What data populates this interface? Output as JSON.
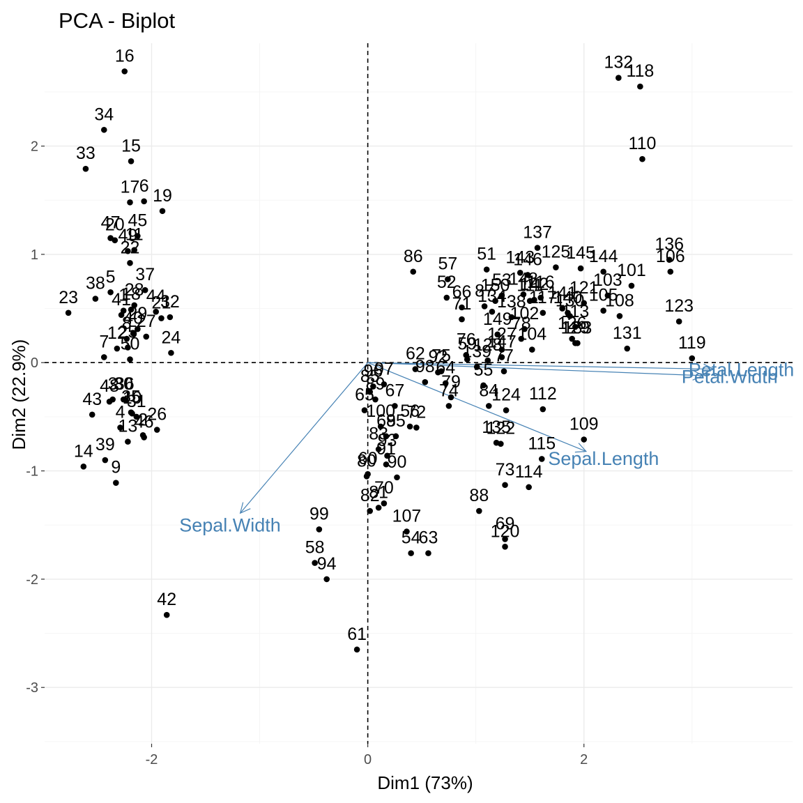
{
  "chart_data": {
    "type": "scatter",
    "title": "PCA - Biplot",
    "xlabel": "Dim1 (73%)",
    "ylabel": "Dim2 (22.9%)",
    "xlim": [
      -2.99,
      3.93
    ],
    "ylim": [
      -3.52,
      2.95
    ],
    "x_ticks": [
      -2,
      0,
      2
    ],
    "y_ticks": [
      -3,
      -2,
      -1,
      0,
      1,
      2
    ],
    "grid": true,
    "reference_lines": {
      "x": 0,
      "y": 0
    },
    "colors": {
      "points": "#000000",
      "arrows": "#4682b4"
    },
    "points": [
      {
        "label": "1",
        "x": -2.26,
        "y": 0.48
      },
      {
        "label": "2",
        "x": -2.08,
        "y": -0.67
      },
      {
        "label": "3",
        "x": -2.36,
        "y": -0.34
      },
      {
        "label": "4",
        "x": -2.29,
        "y": -0.6
      },
      {
        "label": "5",
        "x": -2.38,
        "y": 0.65
      },
      {
        "label": "6",
        "x": -2.07,
        "y": 1.49
      },
      {
        "label": "7",
        "x": -2.44,
        "y": 0.05
      },
      {
        "label": "8",
        "x": -2.23,
        "y": 0.22
      },
      {
        "label": "9",
        "x": -2.33,
        "y": -1.11
      },
      {
        "label": "10",
        "x": -2.18,
        "y": -0.47
      },
      {
        "label": "11",
        "x": -2.16,
        "y": 1.04
      },
      {
        "label": "12",
        "x": -2.32,
        "y": 0.13
      },
      {
        "label": "13",
        "x": -2.22,
        "y": -0.73
      },
      {
        "label": "14",
        "x": -2.63,
        "y": -0.96
      },
      {
        "label": "15",
        "x": -2.19,
        "y": 1.86
      },
      {
        "label": "16",
        "x": -2.25,
        "y": 2.69
      },
      {
        "label": "17",
        "x": -2.2,
        "y": 1.48
      },
      {
        "label": "18",
        "x": -2.19,
        "y": 0.49
      },
      {
        "label": "19",
        "x": -1.9,
        "y": 1.4
      },
      {
        "label": "20",
        "x": -2.34,
        "y": 1.13
      },
      {
        "label": "21",
        "x": -1.91,
        "y": 0.41
      },
      {
        "label": "22",
        "x": -2.2,
        "y": 0.92
      },
      {
        "label": "23",
        "x": -2.77,
        "y": 0.46
      },
      {
        "label": "24",
        "x": -1.82,
        "y": 0.09
      },
      {
        "label": "25",
        "x": -2.22,
        "y": 0.14
      },
      {
        "label": "26",
        "x": -1.95,
        "y": -0.62
      },
      {
        "label": "27",
        "x": -2.05,
        "y": 0.24
      },
      {
        "label": "28",
        "x": -2.16,
        "y": 0.53
      },
      {
        "label": "29",
        "x": -2.13,
        "y": 0.31
      },
      {
        "label": "30",
        "x": -2.26,
        "y": -0.34
      },
      {
        "label": "31",
        "x": -2.14,
        "y": -0.5
      },
      {
        "label": "32",
        "x": -1.83,
        "y": 0.42
      },
      {
        "label": "33",
        "x": -2.61,
        "y": 1.79
      },
      {
        "label": "34",
        "x": -2.44,
        "y": 2.15
      },
      {
        "label": "35",
        "x": -2.19,
        "y": -0.46
      },
      {
        "label": "36",
        "x": -2.25,
        "y": -0.34
      },
      {
        "label": "37",
        "x": -2.06,
        "y": 0.67
      },
      {
        "label": "38",
        "x": -2.52,
        "y": 0.59
      },
      {
        "label": "39",
        "x": -2.43,
        "y": -0.9
      },
      {
        "label": "40",
        "x": -2.17,
        "y": 0.27
      },
      {
        "label": "41",
        "x": -2.28,
        "y": 0.44
      },
      {
        "label": "42",
        "x": -1.86,
        "y": -2.33
      },
      {
        "label": "43",
        "x": -2.55,
        "y": -0.48
      },
      {
        "label": "44",
        "x": -1.96,
        "y": 0.47
      },
      {
        "label": "45",
        "x": -2.13,
        "y": 1.17
      },
      {
        "label": "46",
        "x": -2.07,
        "y": -0.69
      },
      {
        "label": "47",
        "x": -2.38,
        "y": 1.15
      },
      {
        "label": "48",
        "x": -2.39,
        "y": -0.36
      },
      {
        "label": "49",
        "x": -2.22,
        "y": 1.03
      },
      {
        "label": "50",
        "x": -2.2,
        "y": 0.03
      },
      {
        "label": "51",
        "x": 1.1,
        "y": 0.86
      },
      {
        "label": "52",
        "x": 0.73,
        "y": 0.6
      },
      {
        "label": "53",
        "x": 1.24,
        "y": 0.62
      },
      {
        "label": "54",
        "x": 0.4,
        "y": -1.76
      },
      {
        "label": "55",
        "x": 1.07,
        "y": -0.21
      },
      {
        "label": "56",
        "x": 0.39,
        "y": -0.59
      },
      {
        "label": "57",
        "x": 0.74,
        "y": 0.77
      },
      {
        "label": "58",
        "x": -0.49,
        "y": -1.85
      },
      {
        "label": "59",
        "x": 0.92,
        "y": 0.03
      },
      {
        "label": "60",
        "x": 0.0,
        "y": -1.03
      },
      {
        "label": "61",
        "x": -0.1,
        "y": -2.65
      },
      {
        "label": "62",
        "x": 0.44,
        "y": -0.06
      },
      {
        "label": "63",
        "x": 0.56,
        "y": -1.76
      },
      {
        "label": "64",
        "x": 0.72,
        "y": -0.19
      },
      {
        "label": "65",
        "x": -0.03,
        "y": -0.44
      },
      {
        "label": "66",
        "x": 0.87,
        "y": 0.51
      },
      {
        "label": "67",
        "x": 0.25,
        "y": -0.4
      },
      {
        "label": "68",
        "x": 0.17,
        "y": -0.68
      },
      {
        "label": "69",
        "x": 1.27,
        "y": -1.63
      },
      {
        "label": "70",
        "x": 0.15,
        "y": -1.3
      },
      {
        "label": "71",
        "x": 0.87,
        "y": 0.4
      },
      {
        "label": "72",
        "x": 0.45,
        "y": -0.6
      },
      {
        "label": "73",
        "x": 1.27,
        "y": -1.13
      },
      {
        "label": "74",
        "x": 0.75,
        "y": -0.4
      },
      {
        "label": "75",
        "x": 0.68,
        "y": -0.08
      },
      {
        "label": "76",
        "x": 0.91,
        "y": 0.07
      },
      {
        "label": "77",
        "x": 1.26,
        "y": -0.08
      },
      {
        "label": "78",
        "x": 1.42,
        "y": 0.22
      },
      {
        "label": "79",
        "x": 0.77,
        "y": -0.32
      },
      {
        "label": "80",
        "x": -0.01,
        "y": -1.05
      },
      {
        "label": "81",
        "x": 0.1,
        "y": -1.34
      },
      {
        "label": "82",
        "x": 0.02,
        "y": -1.37
      },
      {
        "label": "83",
        "x": 0.1,
        "y": -0.8
      },
      {
        "label": "84",
        "x": 1.12,
        "y": -0.4
      },
      {
        "label": "85",
        "x": 0.02,
        "y": -0.27
      },
      {
        "label": "86",
        "x": 0.42,
        "y": 0.84
      },
      {
        "label": "87",
        "x": 1.08,
        "y": 0.52
      },
      {
        "label": "88",
        "x": 1.03,
        "y": -1.37
      },
      {
        "label": "89",
        "x": 0.07,
        "y": -0.34
      },
      {
        "label": "90",
        "x": 0.27,
        "y": -1.06
      },
      {
        "label": "91",
        "x": 0.17,
        "y": -0.94
      },
      {
        "label": "92",
        "x": 0.65,
        "y": -0.09
      },
      {
        "label": "93",
        "x": 0.18,
        "y": -0.86
      },
      {
        "label": "94",
        "x": -0.38,
        "y": -2.0
      },
      {
        "label": "95",
        "x": 0.26,
        "y": -0.68
      },
      {
        "label": "96",
        "x": 0.05,
        "y": -0.22
      },
      {
        "label": "97",
        "x": 0.15,
        "y": -0.2
      },
      {
        "label": "98",
        "x": 0.53,
        "y": -0.18
      },
      {
        "label": "99",
        "x": -0.45,
        "y": -1.54
      },
      {
        "label": "100",
        "x": 0.12,
        "y": -0.59
      },
      {
        "label": "101",
        "x": 2.44,
        "y": 0.71
      },
      {
        "label": "102",
        "x": 1.45,
        "y": 0.31
      },
      {
        "label": "103",
        "x": 2.22,
        "y": 0.62
      },
      {
        "label": "104",
        "x": 1.52,
        "y": 0.12
      },
      {
        "label": "105",
        "x": 2.18,
        "y": 0.48
      },
      {
        "label": "106",
        "x": 2.8,
        "y": 0.84
      },
      {
        "label": "107",
        "x": 0.36,
        "y": -1.56
      },
      {
        "label": "108",
        "x": 2.33,
        "y": 0.43
      },
      {
        "label": "109",
        "x": 2.0,
        "y": -0.71
      },
      {
        "label": "110",
        "x": 2.54,
        "y": 1.88
      },
      {
        "label": "111",
        "x": 1.5,
        "y": 0.57
      },
      {
        "label": "112",
        "x": 1.62,
        "y": -0.43
      },
      {
        "label": "113",
        "x": 1.92,
        "y": 0.33
      },
      {
        "label": "114",
        "x": 1.49,
        "y": -1.15
      },
      {
        "label": "115",
        "x": 1.61,
        "y": -0.89
      },
      {
        "label": "116",
        "x": 1.6,
        "y": 0.6
      },
      {
        "label": "117",
        "x": 1.62,
        "y": 0.46
      },
      {
        "label": "118",
        "x": 2.52,
        "y": 2.55
      },
      {
        "label": "119",
        "x": 3.0,
        "y": 0.04
      },
      {
        "label": "120",
        "x": 1.27,
        "y": -1.7
      },
      {
        "label": "121",
        "x": 2.0,
        "y": 0.55
      },
      {
        "label": "122",
        "x": 1.23,
        "y": -0.75
      },
      {
        "label": "123",
        "x": 2.88,
        "y": 0.38
      },
      {
        "label": "124",
        "x": 1.28,
        "y": -0.44
      },
      {
        "label": "125",
        "x": 1.74,
        "y": 0.88
      },
      {
        "label": "126",
        "x": 1.89,
        "y": 0.22
      },
      {
        "label": "127",
        "x": 1.24,
        "y": 0.12
      },
      {
        "label": "128",
        "x": 1.11,
        "y": 0.02
      },
      {
        "label": "129",
        "x": 1.92,
        "y": 0.18
      },
      {
        "label": "130",
        "x": 1.87,
        "y": 0.43
      },
      {
        "label": "131",
        "x": 2.4,
        "y": 0.13
      },
      {
        "label": "132",
        "x": 2.32,
        "y": 2.63
      },
      {
        "label": "133",
        "x": 1.94,
        "y": 0.18
      },
      {
        "label": "134",
        "x": 1.15,
        "y": 0.47
      },
      {
        "label": "135",
        "x": 1.19,
        "y": -0.74
      },
      {
        "label": "136",
        "x": 2.79,
        "y": 0.95
      },
      {
        "label": "137",
        "x": 1.57,
        "y": 1.06
      },
      {
        "label": "138",
        "x": 1.33,
        "y": 0.42
      },
      {
        "label": "139",
        "x": 1.01,
        "y": -0.04
      },
      {
        "label": "140",
        "x": 1.85,
        "y": 0.46
      },
      {
        "label": "141",
        "x": 1.8,
        "y": 0.5
      },
      {
        "label": "142",
        "x": 1.54,
        "y": 0.58
      },
      {
        "label": "143",
        "x": 1.41,
        "y": 0.83
      },
      {
        "label": "144",
        "x": 2.18,
        "y": 0.84
      },
      {
        "label": "145",
        "x": 1.97,
        "y": 0.87
      },
      {
        "label": "146",
        "x": 1.48,
        "y": 0.81
      },
      {
        "label": "147",
        "x": 1.24,
        "y": 0.05
      },
      {
        "label": "148",
        "x": 1.44,
        "y": 0.63
      },
      {
        "label": "149",
        "x": 1.2,
        "y": 0.26
      },
      {
        "label": "150",
        "x": 1.18,
        "y": 0.57
      }
    ],
    "variables": [
      {
        "label": "Sepal.Length",
        "x": 2.02,
        "y": -0.82
      },
      {
        "label": "Sepal.Width",
        "x": -1.18,
        "y": -1.39
      },
      {
        "label": "Petal.Length",
        "x": 3.2,
        "y": -0.06
      },
      {
        "label": "Petal.Width",
        "x": 3.1,
        "y": -0.12
      }
    ]
  }
}
